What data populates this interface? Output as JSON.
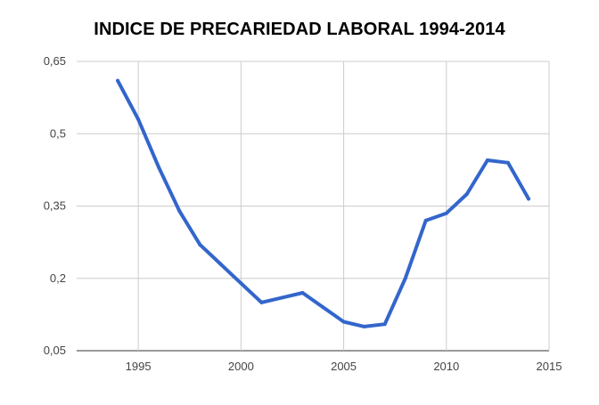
{
  "chart_data": {
    "type": "line",
    "title": "INDICE DE PRECARIEDAD LABORAL 1994-2014",
    "xlabel": "",
    "ylabel": "",
    "xlim": [
      1992,
      2015
    ],
    "ylim": [
      0.05,
      0.65
    ],
    "x_ticks": [
      1995,
      2000,
      2005,
      2010,
      2015
    ],
    "x_tick_labels": [
      "1995",
      "2000",
      "2005",
      "2010",
      "2015"
    ],
    "y_ticks": [
      0.05,
      0.2,
      0.35,
      0.5,
      0.65
    ],
    "y_tick_labels": [
      "0,05",
      "0,2",
      "0,35",
      "0,5",
      "0,65"
    ],
    "grid": true,
    "series": [
      {
        "color": "#3366cc",
        "x": [
          1994,
          1995,
          1996,
          1997,
          1998,
          1999,
          2000,
          2001,
          2002,
          2003,
          2004,
          2005,
          2006,
          2007,
          2008,
          2009,
          2010,
          2011,
          2012,
          2013,
          2014
        ],
        "y": [
          0.61,
          0.53,
          0.43,
          0.34,
          0.27,
          0.23,
          0.19,
          0.15,
          0.16,
          0.17,
          0.14,
          0.11,
          0.1,
          0.105,
          0.2,
          0.32,
          0.335,
          0.375,
          0.445,
          0.44,
          0.365
        ]
      }
    ]
  }
}
